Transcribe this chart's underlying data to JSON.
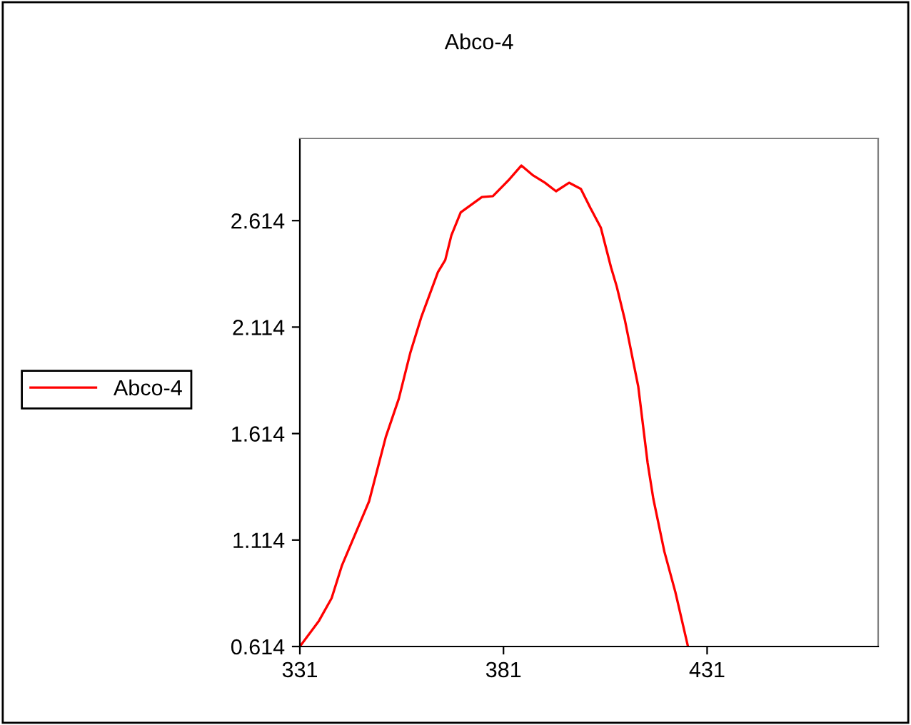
{
  "chart_data": {
    "type": "line",
    "title": "Abco-4",
    "x": [
      331,
      335.7,
      338.8,
      341.3,
      348,
      352.1,
      355.3,
      358.1,
      360.8,
      364.9,
      366.7,
      368.2,
      370.5,
      375.7,
      378.4,
      382.2,
      385.4,
      388.3,
      391.2,
      393.9,
      397.1,
      400,
      402.3,
      404.9,
      407.4,
      408.8,
      410.8,
      414.1,
      416.4,
      417.8,
      420.5,
      423.2,
      426.3
    ],
    "series": [
      {
        "name": "Abco-4",
        "color": "#ff0000",
        "values": [
          0.614,
          0.735,
          0.841,
          0.993,
          1.296,
          1.598,
          1.778,
          1.992,
          2.16,
          2.372,
          2.429,
          2.545,
          2.653,
          2.725,
          2.729,
          2.803,
          2.873,
          2.826,
          2.792,
          2.752,
          2.792,
          2.763,
          2.675,
          2.581,
          2.395,
          2.305,
          2.148,
          1.834,
          1.475,
          1.307,
          1.06,
          0.87,
          0.614
        ]
      }
    ],
    "xlim": [
      331,
      473
    ],
    "xticks": [
      331,
      381,
      431
    ],
    "ylim": [
      0.614,
      3.0
    ],
    "yticks": [
      0.614,
      1.114,
      1.614,
      2.114,
      2.614
    ],
    "grid": false,
    "legend": "left",
    "marker": "none",
    "line_style": "solid"
  }
}
